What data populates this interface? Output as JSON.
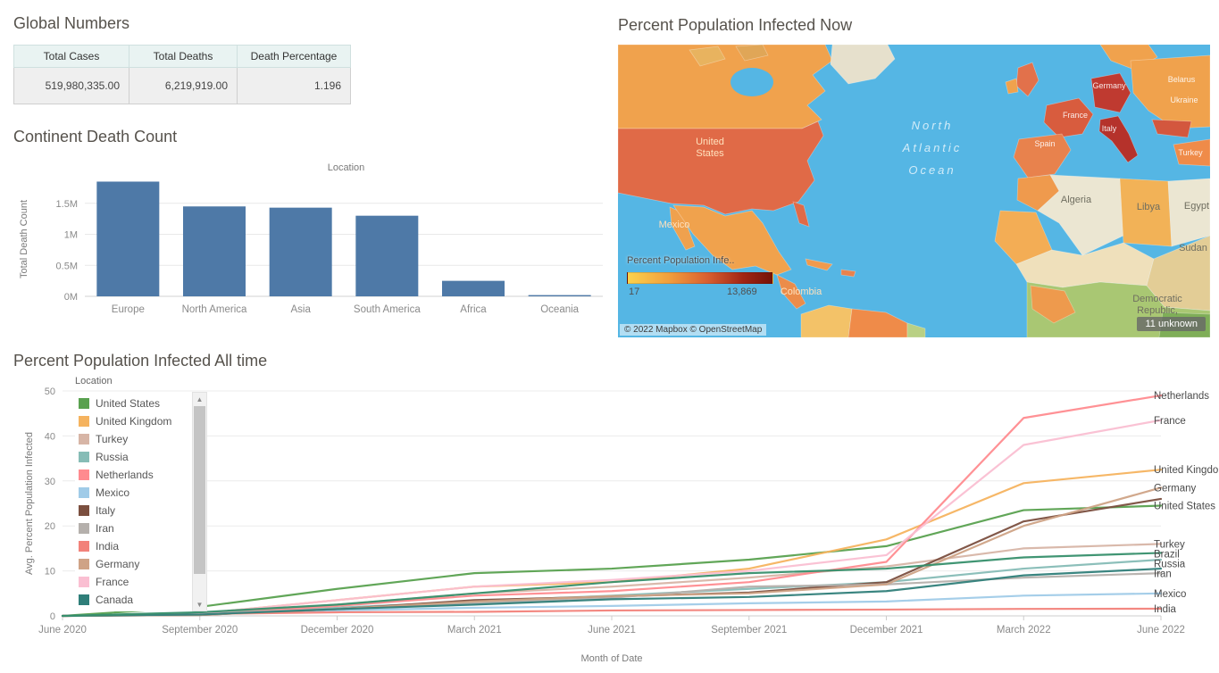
{
  "icons": {
    "scroll_up": "▲",
    "scroll_down": "▼"
  },
  "chart_data": [
    {
      "type": "table",
      "title": "Global Numbers",
      "columns": [
        "Total Cases",
        "Total Deaths",
        "Death Percentage"
      ],
      "rows": [
        [
          "519,980,335.00",
          "6,219,919.00",
          "1.196"
        ]
      ]
    },
    {
      "type": "bar",
      "title": "Continent Death Count",
      "xlabel": "Location",
      "ylabel": "Total Death Count",
      "categories": [
        "Europe",
        "North America",
        "Asia",
        "South America",
        "Africa",
        "Oceania"
      ],
      "values": [
        1850000,
        1450000,
        1430000,
        1300000,
        250000,
        20000
      ],
      "ylim": [
        0,
        1900000
      ],
      "ytick_values": [
        0,
        500000,
        1000000,
        1500000
      ],
      "ytick_labels": [
        "0M",
        "0.5M",
        "1M",
        "1.5M"
      ],
      "bar_color": "#4e79a7"
    },
    {
      "type": "heatmap",
      "subtype": "choropleth-map",
      "title": "Percent Population Infected Now",
      "legend_title": "Percent Population Infe..",
      "scale_min_label": "17",
      "scale_max_label": "13,869",
      "scale_colors": [
        "#fcd24b",
        "#f2a03d",
        "#d95f30",
        "#a02414",
        "#741208"
      ],
      "attribution": "© 2022 Mapbox © OpenStreetMap",
      "badge": "11 unknown",
      "labels": [
        {
          "text": "United States",
          "kind": "place"
        },
        {
          "text": "Mexico",
          "kind": "place"
        },
        {
          "text": "Colombia",
          "kind": "place"
        },
        {
          "text": "North Atlantic Ocean",
          "kind": "ocean"
        },
        {
          "text": "Algeria",
          "kind": "country"
        },
        {
          "text": "Libya",
          "kind": "country"
        },
        {
          "text": "Egypt",
          "kind": "country"
        },
        {
          "text": "Sudan",
          "kind": "country"
        },
        {
          "text": "Democratic Republic,",
          "kind": "country"
        },
        {
          "text": "Spain",
          "kind": "small"
        },
        {
          "text": "France",
          "kind": "small"
        },
        {
          "text": "Italy",
          "kind": "small"
        },
        {
          "text": "Germany",
          "kind": "small"
        },
        {
          "text": "Belarus",
          "kind": "small"
        },
        {
          "text": "Ukraine",
          "kind": "small"
        },
        {
          "text": "Turkey",
          "kind": "small"
        }
      ]
    },
    {
      "type": "line",
      "title": "Percent Population Infected All time",
      "xlabel": "Month of Date",
      "ylabel": "Avg. Percent Population Infected",
      "x": [
        "June 2020",
        "September 2020",
        "December 2020",
        "March 2021",
        "June 2021",
        "September 2021",
        "December 2021",
        "March 2022",
        "June 2022"
      ],
      "ylim": [
        0,
        50
      ],
      "yticks": [
        0,
        10,
        20,
        30,
        40,
        50
      ],
      "legend_title": "Location",
      "legend_items": [
        "United States",
        "United Kingdom",
        "Turkey",
        "Russia",
        "Netherlands",
        "Mexico",
        "Italy",
        "Iran",
        "India",
        "Germany",
        "France",
        "Canada"
      ],
      "series": [
        {
          "name": "United States",
          "color": "#59a14f",
          "values": [
            0,
            2,
            6,
            9.5,
            10.5,
            12.5,
            15.5,
            23.5,
            24.5
          ]
        },
        {
          "name": "United Kingdom",
          "color": "#f5b35f",
          "values": [
            0,
            0.5,
            3.5,
            6.5,
            7.5,
            10.5,
            17,
            29.5,
            32.5
          ]
        },
        {
          "name": "Turkey",
          "color": "#d7b5a6",
          "values": [
            0,
            0.5,
            2.5,
            5,
            6.5,
            8.5,
            11,
            15,
            16
          ]
        },
        {
          "name": "Russia",
          "color": "#86bcb6",
          "values": [
            0,
            0.3,
            1.8,
            3.2,
            4.5,
            6,
            7.5,
            10.5,
            12.5
          ]
        },
        {
          "name": "Netherlands",
          "color": "#ff8b8f",
          "values": [
            0,
            0.3,
            2.2,
            4.5,
            5.5,
            7.5,
            12,
            44,
            49
          ]
        },
        {
          "name": "Mexico",
          "color": "#a0cbe8",
          "values": [
            0,
            0.4,
            1.2,
            1.8,
            2.2,
            2.8,
            3.2,
            4.5,
            5
          ]
        },
        {
          "name": "Italy",
          "color": "#7b4f3f",
          "values": [
            0,
            0.2,
            1.5,
            3.5,
            4.3,
            5.2,
            7.5,
            21,
            26
          ]
        },
        {
          "name": "Iran",
          "color": "#b5b0ac",
          "values": [
            0,
            0.6,
            1.5,
            2.8,
            4,
            6.5,
            7,
            8.5,
            9.5
          ]
        },
        {
          "name": "India",
          "color": "#f2827a",
          "values": [
            0,
            0.4,
            0.8,
            0.9,
            1.2,
            1.3,
            1.4,
            1.55,
            1.6
          ]
        },
        {
          "name": "Germany",
          "color": "#cfa386",
          "values": [
            0,
            0.2,
            1.5,
            3.2,
            4.4,
            5,
            7,
            20,
            28.5
          ]
        },
        {
          "name": "France",
          "color": "#fabfd2",
          "values": [
            0,
            0.5,
            3.5,
            6.5,
            8,
            10,
            13.5,
            38,
            43.5
          ]
        },
        {
          "name": "Canada",
          "color": "#2f7e79",
          "values": [
            0,
            0.3,
            1.5,
            2.5,
            3.7,
            4.2,
            5.5,
            9,
            10.5
          ]
        },
        {
          "name": "Brazil",
          "color": "#368f6b",
          "values": [
            0,
            0.8,
            2.5,
            5,
            7.5,
            9.5,
            10.5,
            13,
            14
          ]
        }
      ],
      "end_labels": [
        {
          "label": "Netherlands",
          "value": 49
        },
        {
          "label": "France",
          "value": 43.5
        },
        {
          "label": "United Kingdom",
          "value": 32.5
        },
        {
          "label": "Germany",
          "value": 28.5
        },
        {
          "label": "United States",
          "value": 24.5
        },
        {
          "label": "Turkey",
          "value": 16
        },
        {
          "label": "Brazil",
          "value": 14
        },
        {
          "label": "Russia",
          "value": 12.5
        },
        {
          "label": "Iran",
          "value": 9.5
        },
        {
          "label": "Mexico",
          "value": 5
        },
        {
          "label": "India",
          "value": 1.6
        }
      ]
    }
  ]
}
